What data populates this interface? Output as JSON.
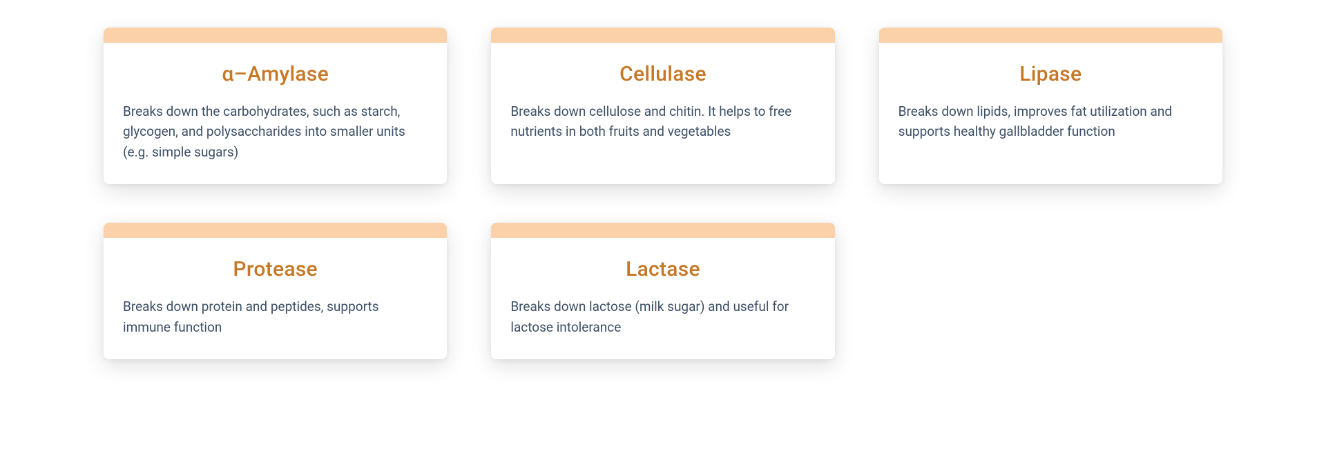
{
  "colors": {
    "card_bg": "#ffffff",
    "top_bar": "#fad1a8",
    "title": "#c67826",
    "body_text": "#3c4f66",
    "page_bg": "#ffffff"
  },
  "cards": [
    {
      "title": "α–Amylase",
      "description": "Breaks down the carbohydrates, such as starch, glycogen, and polysaccharides into smaller units (e.g. simple sugars)"
    },
    {
      "title": "Cellulase",
      "description": "Breaks down cellulose and chitin. It helps to free nutrients in both fruits and vegetables"
    },
    {
      "title": "Lipase",
      "description": "Breaks down lipids, improves fat utilization and supports healthy gallbladder function"
    },
    {
      "title": "Protease",
      "description": "Breaks down protein and peptides, supports immune function"
    },
    {
      "title": "Lactase",
      "description": "Breaks down lactose (milk sugar) and useful for lactose intolerance"
    }
  ]
}
